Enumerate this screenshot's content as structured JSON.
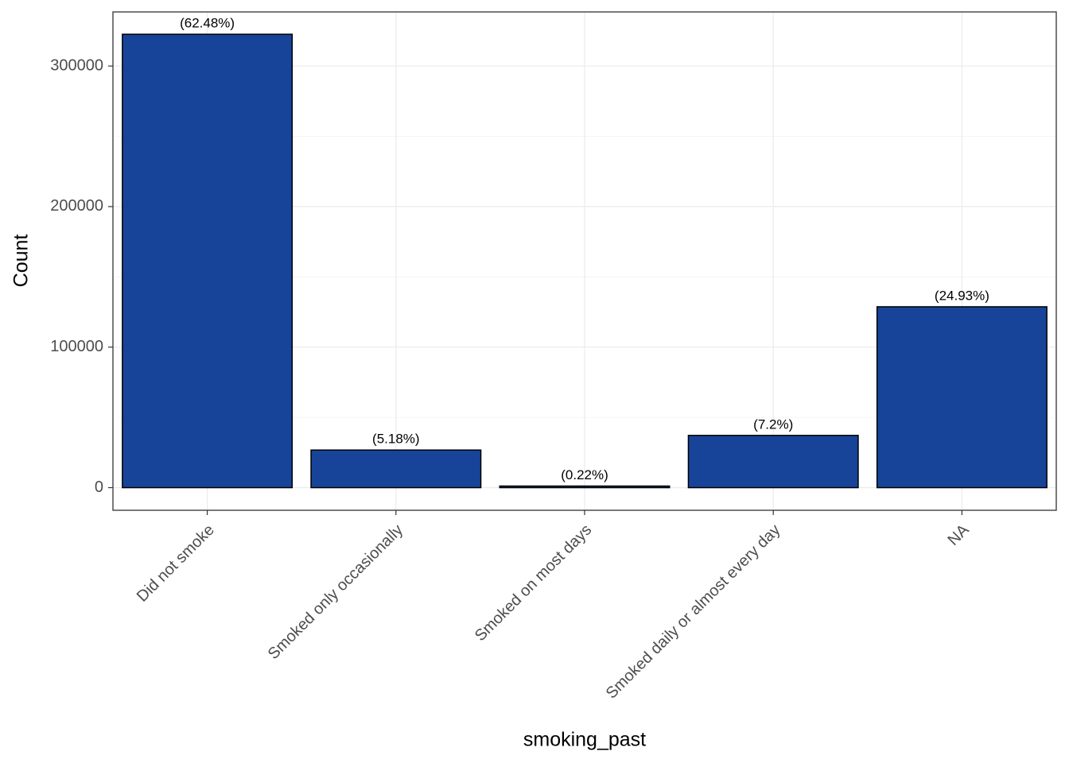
{
  "chart_data": {
    "type": "bar",
    "x_label": "smoking_past",
    "y_label": "Count",
    "categories": [
      "Did not smoke",
      "Smoked only occasionally",
      "Smoked on most days",
      "Smoked daily or almost every day",
      "NA"
    ],
    "values": [
      322600,
      26750,
      1140,
      37170,
      128700
    ],
    "labels": [
      "(62.48%)",
      "(5.18%)",
      "(0.22%)",
      "(7.2%)",
      "(24.93%)"
    ],
    "color": "#174499",
    "ylim": [
      -16100,
      338500
    ],
    "yticks": [
      0,
      100000,
      200000,
      300000
    ],
    "minor_yticks": [
      50000,
      150000,
      250000
    ],
    "grid": true
  }
}
